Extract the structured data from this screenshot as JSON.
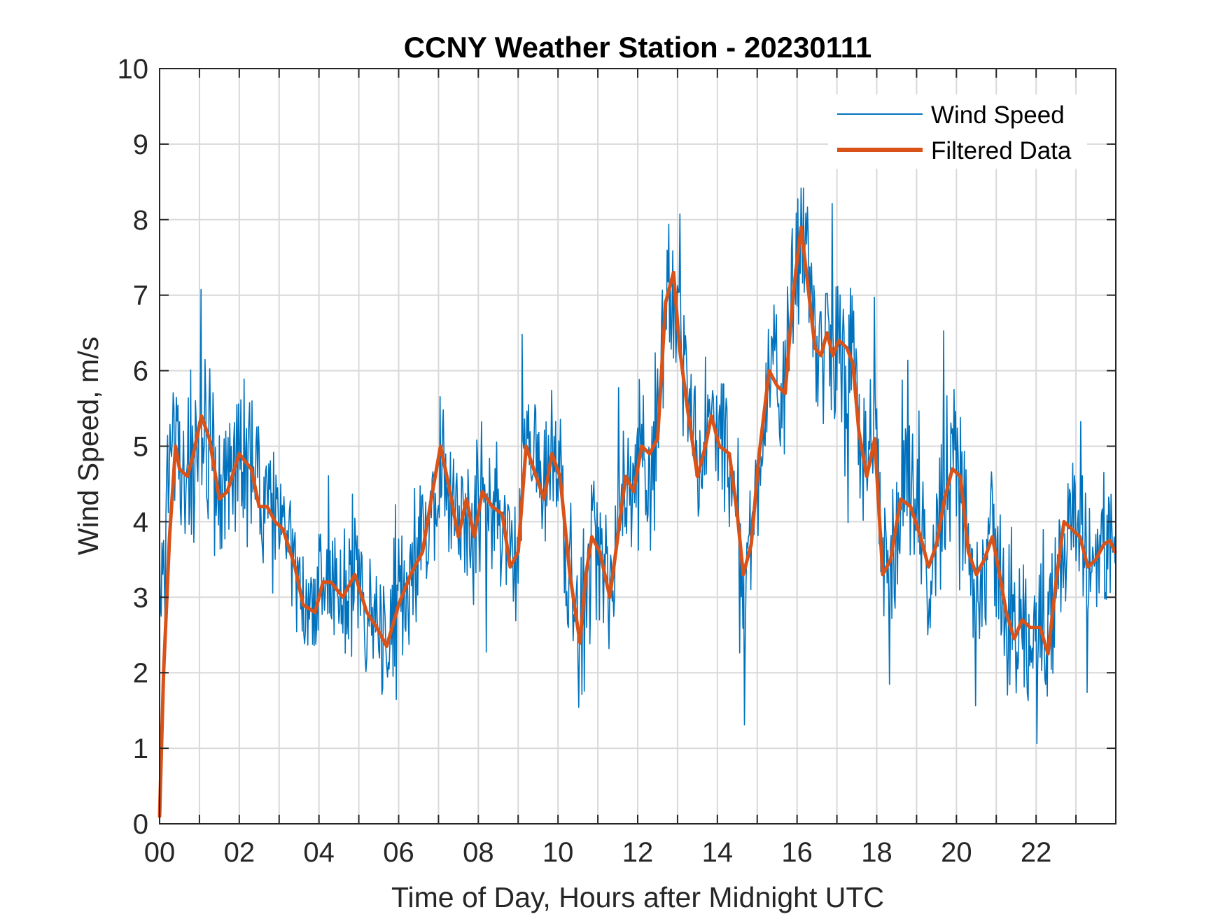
{
  "chart_data": {
    "type": "line",
    "title": "CCNY Weather Station - 20230111",
    "xlabel": "Time of Day, Hours after Midnight UTC",
    "ylabel": "Wind Speed, m/s",
    "xlim": [
      0,
      24
    ],
    "ylim": [
      0,
      10
    ],
    "grid": true,
    "legend_location": "top-right",
    "x_ticks": [
      0,
      2,
      4,
      6,
      8,
      10,
      12,
      14,
      16,
      18,
      20,
      22
    ],
    "x_tick_labels": [
      "00",
      "02",
      "04",
      "06",
      "08",
      "10",
      "12",
      "14",
      "16",
      "18",
      "20",
      "22"
    ],
    "y_ticks": [
      0,
      1,
      2,
      3,
      4,
      5,
      6,
      7,
      8,
      9,
      10
    ],
    "y_tick_labels": [
      "0",
      "1",
      "2",
      "3",
      "4",
      "5",
      "6",
      "7",
      "8",
      "9",
      "10"
    ],
    "series": [
      {
        "name": "Wind Speed",
        "color": "#0072BD",
        "hours_per_sample": 0.02,
        "noise_amplitude": 1.6,
        "values_note_omitted": true
      },
      {
        "name": "Filtered Data",
        "color": "#D95319",
        "x": [
          0,
          0.1,
          0.25,
          0.4,
          0.5,
          0.7,
          0.85,
          1.05,
          1.25,
          1.5,
          1.7,
          2.0,
          2.3,
          2.5,
          2.7,
          2.9,
          3.1,
          3.4,
          3.6,
          3.9,
          4.1,
          4.3,
          4.6,
          4.9,
          5.2,
          5.45,
          5.7,
          6.0,
          6.3,
          6.6,
          6.85,
          7.05,
          7.25,
          7.5,
          7.7,
          7.9,
          8.1,
          8.35,
          8.6,
          8.8,
          9.0,
          9.2,
          9.45,
          9.65,
          9.85,
          10.05,
          10.3,
          10.55,
          10.7,
          10.85,
          11.05,
          11.3,
          11.5,
          11.7,
          11.9,
          12.1,
          12.3,
          12.5,
          12.7,
          12.9,
          13.05,
          13.25,
          13.5,
          13.7,
          13.85,
          14.05,
          14.3,
          14.5,
          14.65,
          14.85,
          15.05,
          15.3,
          15.5,
          15.7,
          15.9,
          16.1,
          16.3,
          16.45,
          16.6,
          16.75,
          16.9,
          17.05,
          17.25,
          17.4,
          17.55,
          17.75,
          17.95,
          18.15,
          18.35,
          18.6,
          18.85,
          19.1,
          19.3,
          19.5,
          19.7,
          19.9,
          20.1,
          20.3,
          20.5,
          20.7,
          20.9,
          21.05,
          21.25,
          21.45,
          21.65,
          21.85,
          22.1,
          22.3,
          22.5,
          22.7,
          22.9,
          23.1,
          23.3,
          23.5,
          23.7,
          23.85,
          23.98
        ],
        "values": [
          0.1,
          2.0,
          3.8,
          5.0,
          4.7,
          4.6,
          4.9,
          5.4,
          5.1,
          4.3,
          4.4,
          4.9,
          4.7,
          4.2,
          4.2,
          4.0,
          3.9,
          3.4,
          2.9,
          2.8,
          3.2,
          3.2,
          3.0,
          3.3,
          2.8,
          2.6,
          2.35,
          2.9,
          3.3,
          3.6,
          4.4,
          5.0,
          4.5,
          3.8,
          4.3,
          3.8,
          4.4,
          4.2,
          4.1,
          3.4,
          3.6,
          5.0,
          4.6,
          4.3,
          4.9,
          4.6,
          3.3,
          2.4,
          3.3,
          3.8,
          3.6,
          3.0,
          3.8,
          4.6,
          4.4,
          5.0,
          4.9,
          5.1,
          6.9,
          7.3,
          6.3,
          5.5,
          4.6,
          5.0,
          5.4,
          5.0,
          4.9,
          4.1,
          3.3,
          3.7,
          4.9,
          6.0,
          5.8,
          5.7,
          7.0,
          7.9,
          7.0,
          6.3,
          6.2,
          6.5,
          6.2,
          6.4,
          6.3,
          6.1,
          5.2,
          4.6,
          5.1,
          3.3,
          3.5,
          4.3,
          4.2,
          3.8,
          3.4,
          3.7,
          4.3,
          4.7,
          4.6,
          3.6,
          3.3,
          3.5,
          3.8,
          3.4,
          2.8,
          2.45,
          2.7,
          2.6,
          2.6,
          2.25,
          3.2,
          4.0,
          3.9,
          3.8,
          3.4,
          3.5,
          3.7,
          3.75,
          3.6
        ]
      }
    ]
  }
}
